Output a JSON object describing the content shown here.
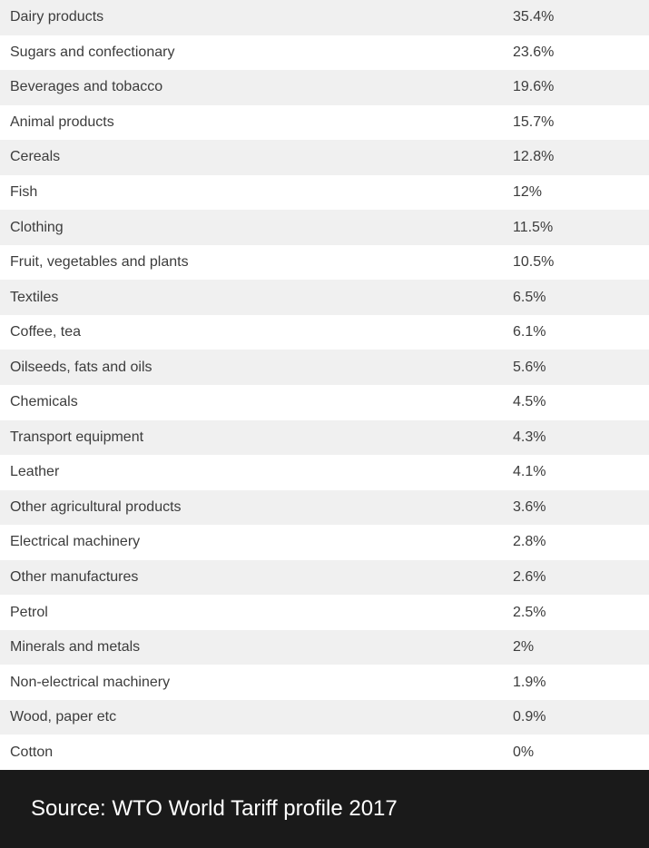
{
  "chart_data": {
    "type": "table",
    "columns": [
      "",
      ""
    ],
    "rows": [
      {
        "category": "Dairy products",
        "display": "35.4%",
        "value": 35.4
      },
      {
        "category": "Sugars and confectionary",
        "display": "23.6%",
        "value": 23.6
      },
      {
        "category": "Beverages and tobacco",
        "display": "19.6%",
        "value": 19.6
      },
      {
        "category": "Animal products",
        "display": "15.7%",
        "value": 15.7
      },
      {
        "category": "Cereals",
        "display": "12.8%",
        "value": 12.8
      },
      {
        "category": "Fish",
        "display": "12%",
        "value": 12
      },
      {
        "category": "Clothing",
        "display": "11.5%",
        "value": 11.5
      },
      {
        "category": "Fruit, vegetables and plants",
        "display": "10.5%",
        "value": 10.5
      },
      {
        "category": "Textiles",
        "display": "6.5%",
        "value": 6.5
      },
      {
        "category": "Coffee, tea",
        "display": "6.1%",
        "value": 6.1
      },
      {
        "category": "Oilseeds, fats and oils",
        "display": "5.6%",
        "value": 5.6
      },
      {
        "category": "Chemicals",
        "display": "4.5%",
        "value": 4.5
      },
      {
        "category": "Transport equipment",
        "display": "4.3%",
        "value": 4.3
      },
      {
        "category": "Leather",
        "display": "4.1%",
        "value": 4.1
      },
      {
        "category": "Other agricultural products",
        "display": "3.6%",
        "value": 3.6
      },
      {
        "category": "Electrical machinery",
        "display": "2.8%",
        "value": 2.8
      },
      {
        "category": "Other manufactures",
        "display": "2.6%",
        "value": 2.6
      },
      {
        "category": "Petrol",
        "display": "2.5%",
        "value": 2.5
      },
      {
        "category": "Minerals and metals",
        "display": "2%",
        "value": 2
      },
      {
        "category": "Non-electrical machinery",
        "display": "1.9%",
        "value": 1.9
      },
      {
        "category": "Wood, paper etc",
        "display": "0.9%",
        "value": 0.9
      },
      {
        "category": "Cotton",
        "display": "0%",
        "value": 0
      }
    ],
    "source": "Source: WTO World Tariff profile 2017"
  },
  "colors": {
    "row_alt": "#f0f0f0",
    "row_base": "#ffffff",
    "text": "#3c3c3c",
    "footer_bg": "#1a1a1a",
    "footer_text": "#ffffff"
  }
}
